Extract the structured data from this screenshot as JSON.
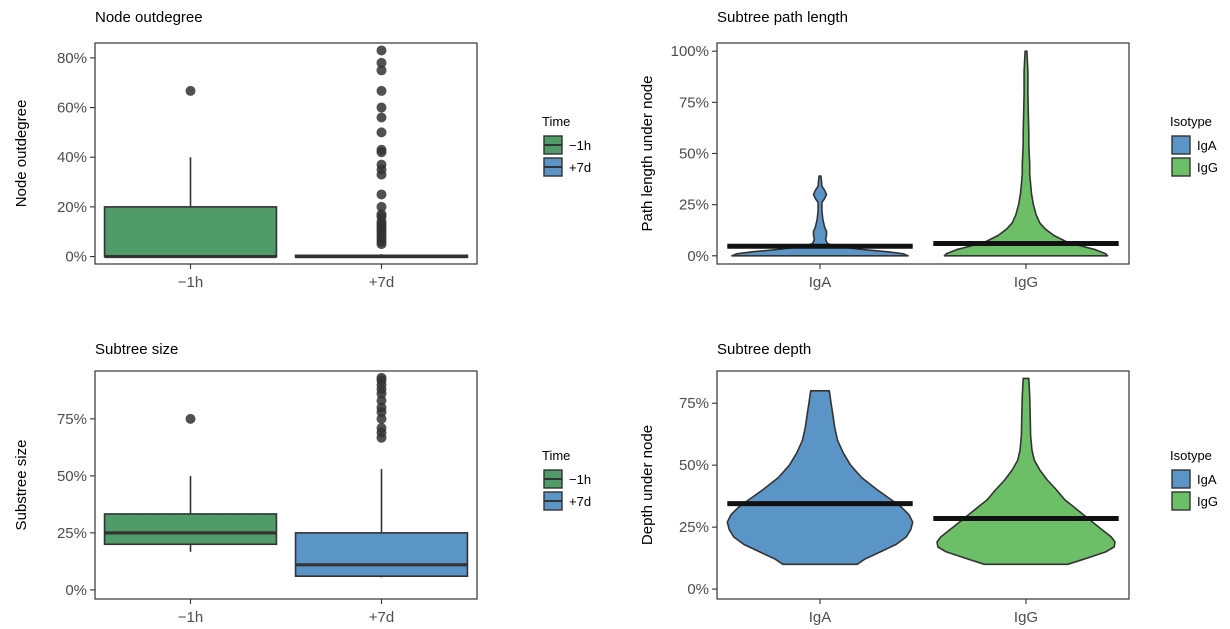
{
  "colors": {
    "green": "#4f9c6a",
    "blue": "#5b95c8",
    "igg_green": "#6cbf66",
    "box_stroke": "#333333",
    "mean_bar": "#111111"
  },
  "chart_data": [
    {
      "type": "box",
      "title": "Node outdegree",
      "xlabel": "",
      "ylabel": "Node outdegree",
      "ylim": [
        -3,
        86
      ],
      "yticks": [
        0,
        20,
        40,
        60,
        80
      ],
      "ytick_labels": [
        "0%",
        "20%",
        "40%",
        "60%",
        "80%"
      ],
      "categories": [
        "−1h",
        "+7d"
      ],
      "legend": {
        "title": "Time",
        "entries": [
          "−1h",
          "+7d"
        ],
        "placement": "right"
      },
      "boxes": [
        {
          "category": "−1h",
          "color": "green",
          "min": 0,
          "q1": 0,
          "median": 0,
          "q3": 20,
          "max": 40,
          "outliers": [
            66.7
          ]
        },
        {
          "category": "+7d",
          "color": "green",
          "min": 0,
          "q1": 0,
          "median": 0,
          "q3": 0.5,
          "max": 1,
          "outliers": [
            5,
            6,
            7,
            8,
            9,
            10,
            11,
            12,
            13,
            14,
            16,
            17,
            20,
            25,
            33,
            35,
            37,
            42,
            43,
            50,
            56,
            60,
            66.7,
            75,
            78,
            83
          ]
        }
      ]
    },
    {
      "type": "violin",
      "title": "Subtree path length",
      "xlabel": "",
      "ylabel": "Path length under node",
      "ylim": [
        -4,
        104
      ],
      "yticks": [
        0,
        25,
        50,
        75,
        100
      ],
      "ytick_labels": [
        "0%",
        "25%",
        "50%",
        "75%",
        "100%"
      ],
      "categories": [
        "IgA",
        "IgG"
      ],
      "legend": {
        "title": "Isotype",
        "entries": [
          "IgA",
          "IgG"
        ],
        "placement": "right"
      },
      "violins": [
        {
          "category": "IgA",
          "color": "blue",
          "mean": 4.7,
          "profile": [
            [
              0,
              0.95
            ],
            [
              1,
              0.9
            ],
            [
              2,
              0.72
            ],
            [
              3,
              0.48
            ],
            [
              4,
              0.28
            ],
            [
              5,
              0.14
            ],
            [
              6,
              0.08
            ],
            [
              8,
              0.06
            ],
            [
              10,
              0.07
            ],
            [
              12,
              0.07
            ],
            [
              14,
              0.05
            ],
            [
              18,
              0.03
            ],
            [
              22,
              0.02
            ],
            [
              26,
              0.02
            ],
            [
              28,
              0.05
            ],
            [
              30,
              0.07
            ],
            [
              32,
              0.05
            ],
            [
              34,
              0.02
            ],
            [
              37,
              0.015
            ],
            [
              39,
              0.01
            ]
          ]
        },
        {
          "category": "IgG",
          "color": "igg_green",
          "mean": 6.0,
          "profile": [
            [
              0,
              0.88
            ],
            [
              1,
              0.86
            ],
            [
              3,
              0.75
            ],
            [
              5,
              0.58
            ],
            [
              7,
              0.43
            ],
            [
              10,
              0.3
            ],
            [
              13,
              0.21
            ],
            [
              16,
              0.15
            ],
            [
              20,
              0.11
            ],
            [
              25,
              0.08
            ],
            [
              30,
              0.06
            ],
            [
              35,
              0.05
            ],
            [
              40,
              0.04
            ],
            [
              45,
              0.04
            ],
            [
              50,
              0.035
            ],
            [
              55,
              0.03
            ],
            [
              60,
              0.03
            ],
            [
              70,
              0.025
            ],
            [
              80,
              0.02
            ],
            [
              90,
              0.02
            ],
            [
              100,
              0.01
            ]
          ]
        }
      ]
    },
    {
      "type": "box",
      "title": "Subtree size",
      "xlabel": "",
      "ylabel": "Substree size",
      "ylim": [
        -4,
        96
      ],
      "yticks": [
        0,
        25,
        50,
        75
      ],
      "ytick_labels": [
        "0%",
        "25%",
        "50%",
        "75%"
      ],
      "categories": [
        "−1h",
        "+7d"
      ],
      "legend": {
        "title": "Time",
        "entries": [
          "−1h",
          "+7d"
        ],
        "placement": "right"
      },
      "boxes": [
        {
          "category": "−1h",
          "color": "green",
          "min": 16.7,
          "q1": 20,
          "median": 25,
          "q3": 33.3,
          "max": 50,
          "outliers": [
            75
          ]
        },
        {
          "category": "+7d",
          "color": "blue",
          "min": 5.5,
          "q1": 6,
          "median": 11,
          "q3": 25,
          "max": 53,
          "outliers": [
            66.7,
            69,
            71,
            75,
            78,
            80,
            83,
            86,
            88,
            90,
            92,
            93
          ]
        }
      ]
    },
    {
      "type": "violin",
      "title": "Subtree depth",
      "xlabel": "",
      "ylabel": "Depth under node",
      "ylim": [
        -4,
        88
      ],
      "yticks": [
        0,
        25,
        50,
        75
      ],
      "ytick_labels": [
        "0%",
        "25%",
        "50%",
        "75%"
      ],
      "categories": [
        "IgA",
        "IgG"
      ],
      "legend": {
        "title": "Isotype",
        "entries": [
          "IgA",
          "IgG"
        ],
        "placement": "right"
      },
      "violins": [
        {
          "category": "IgA",
          "color": "blue",
          "mean": 34.5,
          "profile": [
            [
              10,
              0.4
            ],
            [
              12,
              0.48
            ],
            [
              15,
              0.65
            ],
            [
              18,
              0.82
            ],
            [
              21,
              0.93
            ],
            [
              24,
              0.98
            ],
            [
              27,
              1.0
            ],
            [
              30,
              0.96
            ],
            [
              33,
              0.88
            ],
            [
              36,
              0.77
            ],
            [
              40,
              0.62
            ],
            [
              45,
              0.45
            ],
            [
              50,
              0.33
            ],
            [
              55,
              0.25
            ],
            [
              60,
              0.19
            ],
            [
              65,
              0.16
            ],
            [
              70,
              0.14
            ],
            [
              75,
              0.12
            ],
            [
              80,
              0.1
            ]
          ]
        },
        {
          "category": "IgG",
          "color": "igg_green",
          "mean": 28.5,
          "profile": [
            [
              10,
              0.45
            ],
            [
              12,
              0.62
            ],
            [
              15,
              0.86
            ],
            [
              17,
              0.95
            ],
            [
              19,
              0.96
            ],
            [
              21,
              0.92
            ],
            [
              24,
              0.82
            ],
            [
              27,
              0.72
            ],
            [
              30,
              0.62
            ],
            [
              33,
              0.52
            ],
            [
              36,
              0.42
            ],
            [
              40,
              0.33
            ],
            [
              44,
              0.23
            ],
            [
              48,
              0.15
            ],
            [
              52,
              0.09
            ],
            [
              56,
              0.065
            ],
            [
              62,
              0.05
            ],
            [
              70,
              0.045
            ],
            [
              78,
              0.04
            ],
            [
              82,
              0.035
            ],
            [
              85,
              0.03
            ]
          ]
        }
      ]
    }
  ]
}
